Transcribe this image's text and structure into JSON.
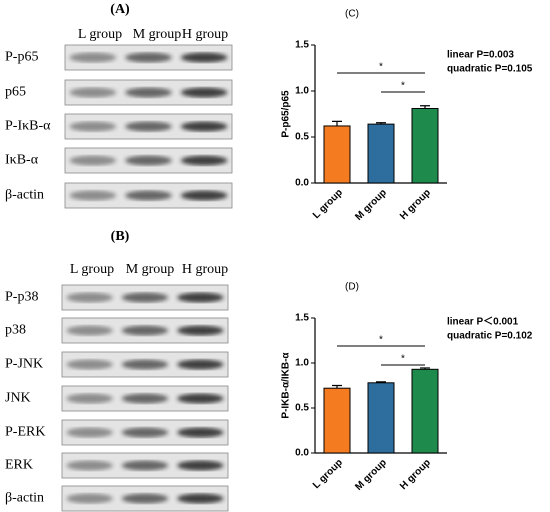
{
  "blots": [
    {
      "label": "(A)",
      "groups": [
        "L group",
        "M group",
        "H group"
      ],
      "rows": [
        "P-p65",
        "p65",
        "P-IκB-α",
        "IκB-α",
        "β-actin"
      ]
    },
    {
      "label": "(B)",
      "groups": [
        "L group",
        "M group",
        "H group"
      ],
      "rows": [
        "P-p38",
        "p38",
        "P-JNK",
        "JNK",
        "P-ERK",
        "ERK",
        "β-actin"
      ]
    }
  ],
  "chart_data": [
    {
      "type": "bar",
      "title": "(C)",
      "y_label": "P-p65/p65",
      "categories": [
        "L group",
        "M group",
        "H group"
      ],
      "values": [
        0.62,
        0.64,
        0.81
      ],
      "errors": [
        0.05,
        0.015,
        0.03
      ],
      "colors": [
        "#f47b20",
        "#2e6e9e",
        "#1e8a4c"
      ],
      "ylim": [
        0,
        1.5
      ],
      "yticks": [
        {
          "value": 0,
          "label": "0.0"
        },
        0.5,
        {
          "value": 1,
          "label": "1.0"
        },
        1.5
      ],
      "annotations": [
        "linear P=0.003",
        "quadratic P=0.105"
      ],
      "markers": [
        "*",
        "*"
      ]
    },
    {
      "type": "bar",
      "title": "(D)",
      "y_label": "P-IKB-α/IKB-α",
      "categories": [
        "L group",
        "M group",
        "H group"
      ],
      "values": [
        0.72,
        0.78,
        0.93
      ],
      "errors": [
        0.03,
        0.01,
        0.015
      ],
      "colors": [
        "#f47b20",
        "#2e6e9e",
        "#1e8a4c"
      ],
      "ylim": [
        0,
        1.5
      ],
      "yticks": [
        {
          "value": 0,
          "label": "0.0"
        },
        0.5,
        {
          "value": 1,
          "label": "1.0"
        },
        1.5
      ],
      "annotations": [
        "linear P＜0.001",
        "quadratic P=0.102"
      ],
      "markers": [
        "*",
        "*"
      ]
    }
  ]
}
